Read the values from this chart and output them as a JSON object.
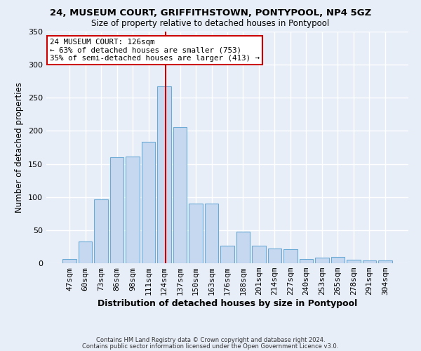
{
  "title1": "24, MUSEUM COURT, GRIFFITHSTOWN, PONTYPOOL, NP4 5GZ",
  "title2": "Size of property relative to detached houses in Pontypool",
  "xlabel": "Distribution of detached houses by size in Pontypool",
  "ylabel": "Number of detached properties",
  "categories": [
    "47sqm",
    "60sqm",
    "73sqm",
    "86sqm",
    "98sqm",
    "111sqm",
    "124sqm",
    "137sqm",
    "150sqm",
    "163sqm",
    "176sqm",
    "188sqm",
    "201sqm",
    "214sqm",
    "227sqm",
    "240sqm",
    "253sqm",
    "265sqm",
    "278sqm",
    "291sqm",
    "304sqm"
  ],
  "values": [
    6,
    33,
    96,
    160,
    161,
    184,
    267,
    206,
    90,
    90,
    27,
    48,
    26,
    22,
    21,
    6,
    9,
    10,
    5,
    4,
    4
  ],
  "bar_color": "#c5d8f0",
  "bar_edge_color": "#6aaad4",
  "vline_x_data": 6.1,
  "vline_color": "#cc0000",
  "annotation_line1": "24 MUSEUM COURT: 126sqm",
  "annotation_line2": "← 63% of detached houses are smaller (753)",
  "annotation_line3": "35% of semi-detached houses are larger (413) →",
  "annotation_box_color": "#ffffff",
  "annotation_box_edge": "#cc0000",
  "footer1": "Contains HM Land Registry data © Crown copyright and database right 2024.",
  "footer2": "Contains public sector information licensed under the Open Government Licence v3.0.",
  "bg_color": "#e8eef8",
  "ylim": [
    0,
    350
  ],
  "yticks": [
    0,
    50,
    100,
    150,
    200,
    250,
    300,
    350
  ]
}
